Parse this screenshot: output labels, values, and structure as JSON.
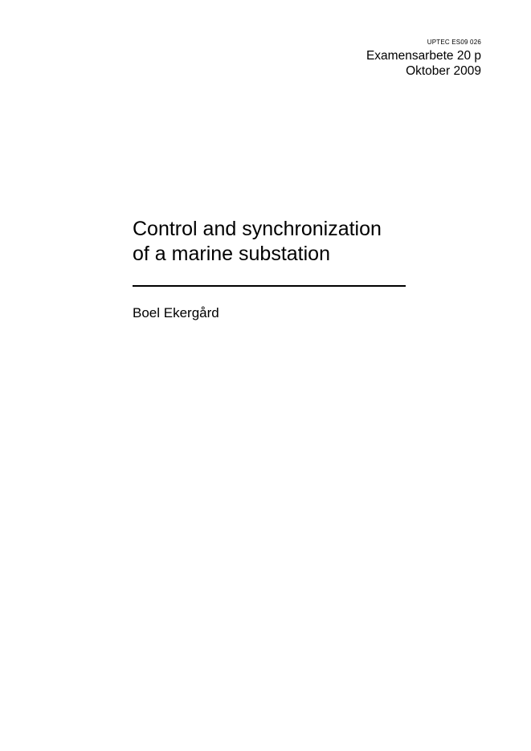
{
  "header": {
    "report_code": "UPTEC ES09 026",
    "thesis_type": "Examensarbete 20 p",
    "date": "Oktober 2009"
  },
  "title": {
    "line1": "Control and synchronization",
    "line2": "of a marine substation"
  },
  "author": "Boel Ekergård",
  "colors": {
    "text": "#000000",
    "background": "#ffffff"
  }
}
